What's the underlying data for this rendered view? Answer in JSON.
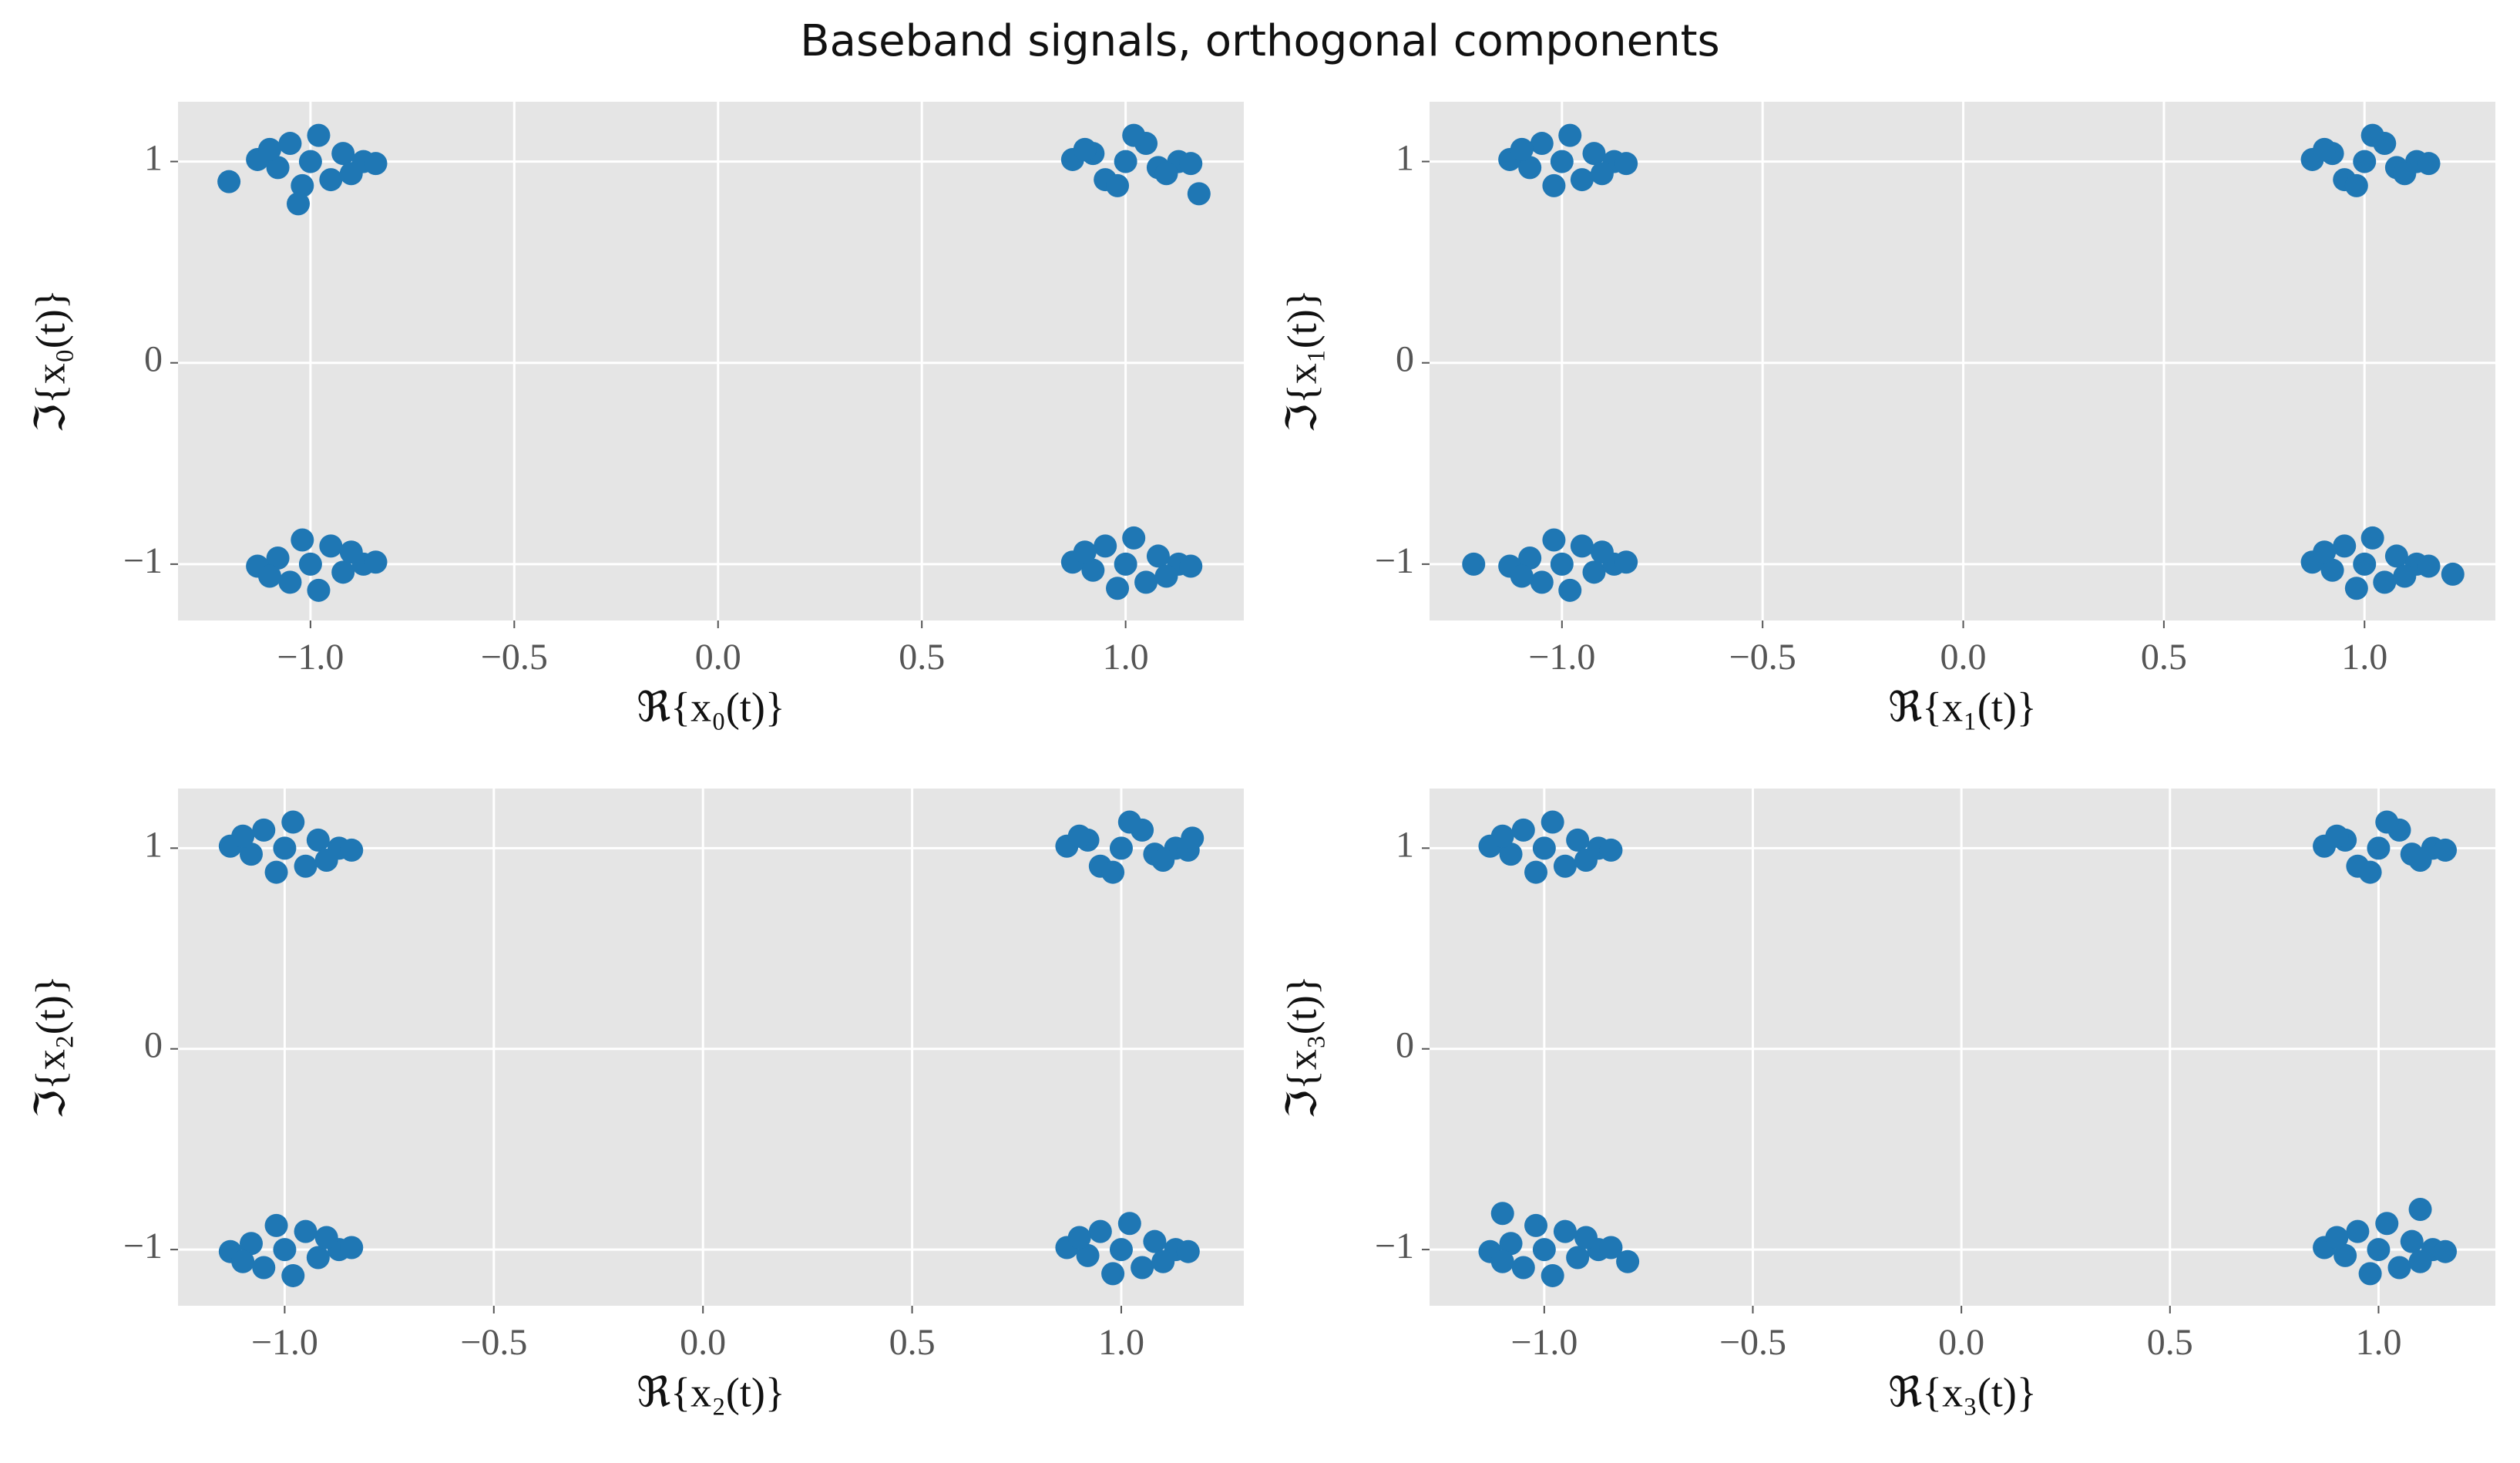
{
  "title": "Baseband signals, orthogonal components",
  "chart_data": [
    {
      "type": "scatter",
      "x_label": "ℜ{x₀(t)}",
      "y_label": "ℑ{x₀(t)}",
      "color": "#1f77b4",
      "grid": true,
      "xlim": [
        -1.325,
        1.29
      ],
      "ylim": [
        -1.28,
        1.297
      ],
      "xticks": [
        {
          "value": -1,
          "label": "−1.0"
        },
        {
          "value": -0.5,
          "label": "−0.5"
        },
        {
          "value": 0,
          "label": "0.0"
        },
        0.5,
        {
          "value": 1,
          "label": "1.0"
        }
      ],
      "yticks": [
        {
          "value": -1,
          "label": "−1"
        },
        0,
        1
      ],
      "x": [
        -1,
        -0.92,
        -1.08,
        -0.95,
        -1.05,
        -0.87,
        -1.13,
        -0.98,
        -1.02,
        -0.9,
        -1.1,
        -0.84,
        1,
        0.92,
        1.08,
        0.95,
        1.05,
        1.13,
        0.87,
        1.02,
        0.98,
        1.1,
        0.9,
        1.16,
        -1,
        -0.92,
        -1.08,
        -0.95,
        -1.05,
        -0.87,
        -1.13,
        -0.98,
        -1.02,
        -0.9,
        -1.1,
        -0.84,
        1,
        1.08,
        0.92,
        1.05,
        0.95,
        1.13,
        0.87,
        1.02,
        0.98,
        1.1,
        0.9,
        1.16,
        -1.2,
        1.18,
        -1.03
      ],
      "y": [
        1,
        1.04,
        0.97,
        0.91,
        1.09,
        1,
        1.01,
        1.13,
        0.88,
        0.94,
        1.06,
        0.99,
        1,
        1.04,
        0.97,
        0.91,
        1.09,
        1,
        1.01,
        1.13,
        0.88,
        0.94,
        1.06,
        0.99,
        -1,
        -1.04,
        -0.97,
        -0.91,
        -1.09,
        -1,
        -1.01,
        -1.13,
        -0.88,
        -0.94,
        -1.06,
        -0.99,
        -1,
        -0.96,
        -1.03,
        -1.09,
        -0.91,
        -1,
        -0.99,
        -0.87,
        -1.12,
        -1.06,
        -0.94,
        -1.01,
        0.9,
        0.84,
        0.79
      ]
    },
    {
      "type": "scatter",
      "x_label": "ℜ{x₁(t)}",
      "y_label": "ℑ{x₁(t)}",
      "color": "#1f77b4",
      "grid": true,
      "xlim": [
        -1.33,
        1.326
      ],
      "ylim": [
        -1.28,
        1.297
      ],
      "xticks": [
        {
          "value": -1,
          "label": "−1.0"
        },
        {
          "value": -0.5,
          "label": "−0.5"
        },
        {
          "value": 0,
          "label": "0.0"
        },
        0.5,
        {
          "value": 1,
          "label": "1.0"
        }
      ],
      "yticks": [
        {
          "value": -1,
          "label": "−1"
        },
        0,
        1
      ],
      "x": [
        -1,
        -0.92,
        -1.08,
        -0.95,
        -1.05,
        -0.87,
        -1.13,
        -0.98,
        -1.02,
        -0.9,
        -1.1,
        -0.84,
        1,
        0.92,
        1.08,
        0.95,
        1.05,
        1.13,
        0.87,
        1.02,
        0.98,
        1.1,
        0.9,
        1.16,
        -1,
        -0.92,
        -1.08,
        -0.95,
        -1.05,
        -0.87,
        -1.13,
        -0.98,
        -1.02,
        -0.9,
        -1.1,
        -0.84,
        1,
        1.08,
        0.92,
        1.05,
        0.95,
        1.13,
        0.87,
        1.02,
        0.98,
        1.1,
        0.9,
        1.16,
        -1.22,
        1.22
      ],
      "y": [
        1,
        1.04,
        0.97,
        0.91,
        1.09,
        1,
        1.01,
        1.13,
        0.88,
        0.94,
        1.06,
        0.99,
        1,
        1.04,
        0.97,
        0.91,
        1.09,
        1,
        1.01,
        1.13,
        0.88,
        0.94,
        1.06,
        0.99,
        -1,
        -1.04,
        -0.97,
        -0.91,
        -1.09,
        -1,
        -1.01,
        -1.13,
        -0.88,
        -0.94,
        -1.06,
        -0.99,
        -1,
        -0.96,
        -1.03,
        -1.09,
        -0.91,
        -1,
        -0.99,
        -0.87,
        -1.12,
        -1.06,
        -0.94,
        -1.01,
        -1,
        -1.05
      ]
    },
    {
      "type": "scatter",
      "x_label": "ℜ{x₂(t)}",
      "y_label": "ℑ{x₂(t)}",
      "color": "#1f77b4",
      "grid": true,
      "xlim": [
        -1.255,
        1.293
      ],
      "ylim": [
        -1.28,
        1.297
      ],
      "xticks": [
        {
          "value": -1,
          "label": "−1.0"
        },
        {
          "value": -0.5,
          "label": "−0.5"
        },
        {
          "value": 0,
          "label": "0.0"
        },
        0.5,
        {
          "value": 1,
          "label": "1.0"
        }
      ],
      "yticks": [
        {
          "value": -1,
          "label": "−1"
        },
        0,
        1
      ],
      "x": [
        -1,
        -0.92,
        -1.08,
        -0.95,
        -1.05,
        -0.87,
        -1.13,
        -0.98,
        -1.02,
        -0.9,
        -1.1,
        -0.84,
        1,
        0.92,
        1.08,
        0.95,
        1.05,
        1.13,
        0.87,
        1.02,
        0.98,
        1.1,
        0.9,
        1.16,
        -1,
        -0.92,
        -1.08,
        -0.95,
        -1.05,
        -0.87,
        -1.13,
        -0.98,
        -1.02,
        -0.9,
        -1.1,
        -0.84,
        1,
        1.08,
        0.92,
        1.05,
        0.95,
        1.13,
        0.87,
        1.02,
        0.98,
        1.1,
        0.9,
        1.16,
        1.17
      ],
      "y": [
        1,
        1.04,
        0.97,
        0.91,
        1.09,
        1,
        1.01,
        1.13,
        0.88,
        0.94,
        1.06,
        0.99,
        1,
        1.04,
        0.97,
        0.91,
        1.09,
        1,
        1.01,
        1.13,
        0.88,
        0.94,
        1.06,
        0.99,
        -1,
        -1.04,
        -0.97,
        -0.91,
        -1.09,
        -1,
        -1.01,
        -1.13,
        -0.88,
        -0.94,
        -1.06,
        -0.99,
        -1,
        -0.96,
        -1.03,
        -1.09,
        -0.91,
        -1,
        -0.99,
        -0.87,
        -1.12,
        -1.06,
        -0.94,
        -1.01,
        1.05
      ]
    },
    {
      "type": "scatter",
      "x_label": "ℜ{x₃(t)}",
      "y_label": "ℑ{x₃(t)}",
      "color": "#1f77b4",
      "grid": true,
      "xlim": [
        -1.275,
        1.28
      ],
      "ylim": [
        -1.28,
        1.297
      ],
      "xticks": [
        {
          "value": -1,
          "label": "−1.0"
        },
        {
          "value": -0.5,
          "label": "−0.5"
        },
        {
          "value": 0,
          "label": "0.0"
        },
        0.5,
        {
          "value": 1,
          "label": "1.0"
        }
      ],
      "yticks": [
        {
          "value": -1,
          "label": "−1"
        },
        0,
        1
      ],
      "x": [
        -1,
        -0.92,
        -1.08,
        -0.95,
        -1.05,
        -0.87,
        -1.13,
        -0.98,
        -1.02,
        -0.9,
        -1.1,
        -0.84,
        1,
        0.92,
        1.08,
        0.95,
        1.05,
        1.13,
        0.87,
        1.02,
        0.98,
        1.1,
        0.9,
        1.16,
        -1,
        -0.92,
        -1.08,
        -0.95,
        -1.05,
        -0.87,
        -1.13,
        -0.98,
        -1.02,
        -0.9,
        -1.1,
        -0.84,
        1,
        1.08,
        0.92,
        1.05,
        0.95,
        1.13,
        0.87,
        1.02,
        0.98,
        1.1,
        0.9,
        1.16,
        -0.8,
        -1.1,
        1.1
      ],
      "y": [
        1,
        1.04,
        0.97,
        0.91,
        1.09,
        1,
        1.01,
        1.13,
        0.88,
        0.94,
        1.06,
        0.99,
        1,
        1.04,
        0.97,
        0.91,
        1.09,
        1,
        1.01,
        1.13,
        0.88,
        0.94,
        1.06,
        0.99,
        -1,
        -1.04,
        -0.97,
        -0.91,
        -1.09,
        -1,
        -1.01,
        -1.13,
        -0.88,
        -0.94,
        -1.06,
        -0.99,
        -1,
        -0.96,
        -1.03,
        -1.09,
        -0.91,
        -1,
        -0.99,
        -0.87,
        -1.12,
        -1.06,
        -0.94,
        -1.01,
        -1.06,
        -0.82,
        -0.8
      ]
    }
  ]
}
